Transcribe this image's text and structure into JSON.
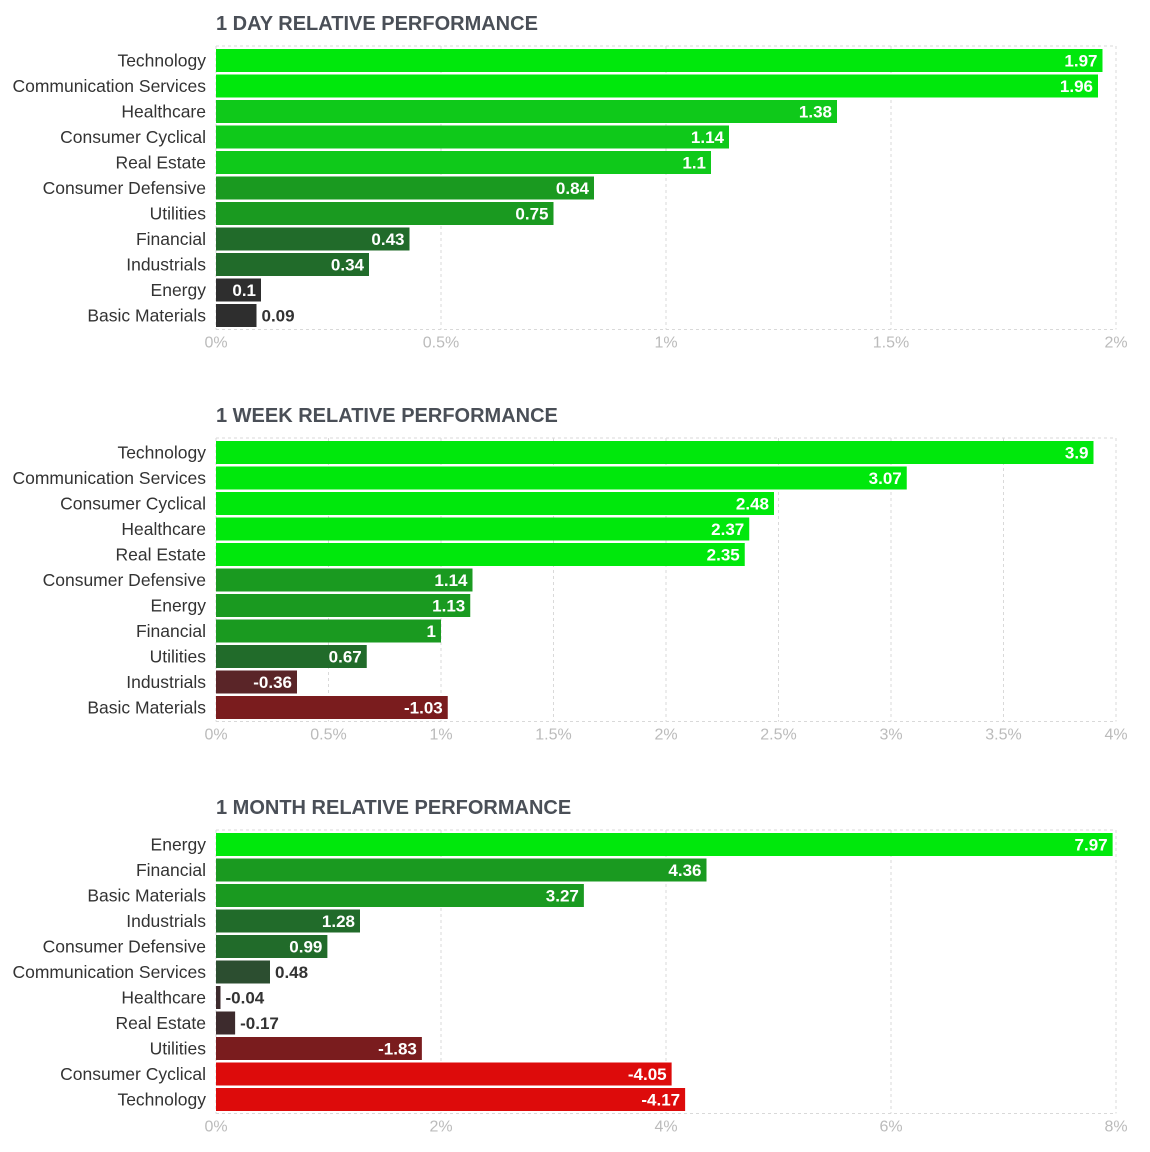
{
  "colors": {
    "pos_1": "#00e80c",
    "pos_2": "#0fc91a",
    "pos_3": "#1a9a20",
    "pos_4": "#216b2a",
    "pos_5": "#2c4e30",
    "neutral": "#2e2e2e",
    "neg_1": "#3d2b2d",
    "neg_2": "#5a2528",
    "neg_3": "#7a1c1e",
    "neg_4": "#dd0b0b",
    "grid": "#d9d9d9",
    "tick_text": "#bbbbbb",
    "label_text": "#333333",
    "title_text": "#4a4f57"
  },
  "chart_data": [
    {
      "type": "bar",
      "orientation": "horizontal",
      "title": "1 DAY RELATIVE PERFORMANCE",
      "categories": [
        "Technology",
        "Communication Services",
        "Healthcare",
        "Consumer Cyclical",
        "Real Estate",
        "Consumer Defensive",
        "Utilities",
        "Financial",
        "Industrials",
        "Energy",
        "Basic Materials"
      ],
      "values": [
        1.97,
        1.96,
        1.38,
        1.14,
        1.1,
        0.84,
        0.75,
        0.43,
        0.34,
        0.1,
        0.09
      ],
      "value_labels": [
        "1.97",
        "1.96",
        "1.38",
        "1.14",
        "1.1",
        "0.84",
        "0.75",
        "0.43",
        "0.34",
        "0.1",
        "0.09"
      ],
      "bar_colors": [
        "pos_1",
        "pos_1",
        "pos_2",
        "pos_2",
        "pos_2",
        "pos_3",
        "pos_3",
        "pos_4",
        "pos_4",
        "neutral",
        "neutral"
      ],
      "xlim": [
        0,
        2
      ],
      "ticks": [
        0,
        0.5,
        1,
        1.5,
        2
      ],
      "tick_labels": [
        "0%",
        "0.5%",
        "1%",
        "1.5%",
        "2%"
      ],
      "xlabel": "",
      "ylabel": ""
    },
    {
      "type": "bar",
      "orientation": "horizontal",
      "title": "1 WEEK RELATIVE PERFORMANCE",
      "categories": [
        "Technology",
        "Communication Services",
        "Consumer Cyclical",
        "Healthcare",
        "Real Estate",
        "Consumer Defensive",
        "Energy",
        "Financial",
        "Utilities",
        "Industrials",
        "Basic Materials"
      ],
      "values": [
        3.9,
        3.07,
        2.48,
        2.37,
        2.35,
        1.14,
        1.13,
        1,
        0.67,
        -0.36,
        -1.03
      ],
      "value_labels": [
        "3.9",
        "3.07",
        "2.48",
        "2.37",
        "2.35",
        "1.14",
        "1.13",
        "1",
        "0.67",
        "-0.36",
        "-1.03"
      ],
      "bar_colors": [
        "pos_1",
        "pos_1",
        "pos_1",
        "pos_1",
        "pos_1",
        "pos_3",
        "pos_3",
        "pos_3",
        "pos_4",
        "neg_2",
        "neg_3"
      ],
      "xlim": [
        0,
        4
      ],
      "ticks": [
        0,
        0.5,
        1,
        1.5,
        2,
        2.5,
        3,
        3.5,
        4
      ],
      "tick_labels": [
        "0%",
        "0.5%",
        "1%",
        "1.5%",
        "2%",
        "2.5%",
        "3%",
        "3.5%",
        "4%"
      ],
      "xlabel": "",
      "ylabel": ""
    },
    {
      "type": "bar",
      "orientation": "horizontal",
      "title": "1 MONTH RELATIVE PERFORMANCE",
      "categories": [
        "Energy",
        "Financial",
        "Basic Materials",
        "Industrials",
        "Consumer Defensive",
        "Communication Services",
        "Healthcare",
        "Real Estate",
        "Utilities",
        "Consumer Cyclical",
        "Technology"
      ],
      "values": [
        7.97,
        4.36,
        3.27,
        1.28,
        0.99,
        0.48,
        -0.04,
        -0.17,
        -1.83,
        -4.05,
        -4.17
      ],
      "value_labels": [
        "7.97",
        "4.36",
        "3.27",
        "1.28",
        "0.99",
        "0.48",
        "-0.04",
        "-0.17",
        "-1.83",
        "-4.05",
        "-4.17"
      ],
      "bar_colors": [
        "pos_1",
        "pos_3",
        "pos_3",
        "pos_4",
        "pos_4",
        "pos_5",
        "neg_1",
        "neg_1",
        "neg_3",
        "neg_4",
        "neg_4"
      ],
      "xlim": [
        0,
        8
      ],
      "ticks": [
        0,
        2,
        4,
        6,
        8
      ],
      "tick_labels": [
        "0%",
        "2%",
        "4%",
        "6%",
        "8%"
      ],
      "xlabel": "",
      "ylabel": ""
    }
  ]
}
